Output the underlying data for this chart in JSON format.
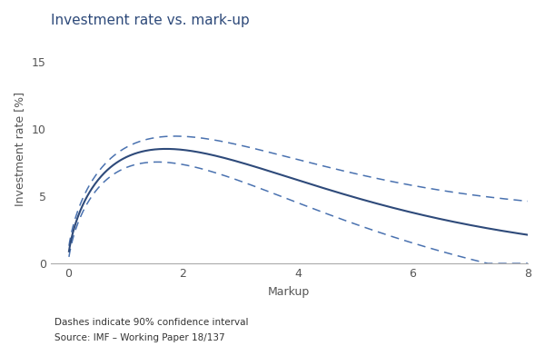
{
  "title": "Investment rate vs. mark-up",
  "xlabel": "Markup",
  "ylabel": "Investment rate [%]",
  "xlim": [
    -0.3,
    8
  ],
  "ylim": [
    0,
    17
  ],
  "xticks": [
    0,
    2,
    4,
    6,
    8
  ],
  "yticks": [
    0,
    5,
    10,
    15
  ],
  "main_color": "#2e4a7a",
  "ci_color": "#4a72b0",
  "footnote1": "Dashes indicate 90% confidence interval",
  "footnote2": "Source: IMF – Working Paper 18/137",
  "curve_params": {
    "a": 11.5,
    "b": 0.65,
    "c": -0.38
  }
}
